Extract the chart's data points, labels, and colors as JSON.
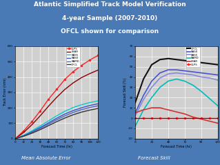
{
  "title_lines": [
    "Atlantic Simplified Track Model Verification",
    "4-year Sample (2007-2010)",
    "OFCL shown for comparison"
  ],
  "background_color": "#4a7ab5",
  "plot_bg": "#d0d0d0",
  "subtitle_left": "Mean Absolute Error",
  "subtitle_right": "Forecast Skill",
  "mae": {
    "xlabel": "Forecast Time (hr)",
    "ylabel": "Track Error (nmi)",
    "xlim": [
      0,
      120
    ],
    "ylim": [
      0,
      600
    ],
    "xticks": [
      0,
      12,
      24,
      36,
      48,
      60,
      72,
      84,
      96,
      108,
      120
    ],
    "yticks": [
      0,
      100,
      200,
      300,
      400,
      500,
      600
    ],
    "series": [
      {
        "label": "CLPS",
        "color": "#ff2020",
        "marker": true,
        "lw": 1.0,
        "values": [
          0,
          50,
          110,
          180,
          255,
          320,
          385,
          435,
          475,
          510,
          540
        ]
      },
      {
        "label": "LBAR",
        "color": "#880000",
        "marker": false,
        "lw": 1.0,
        "values": [
          0,
          40,
          90,
          148,
          210,
          268,
          320,
          362,
          396,
          422,
          445
        ]
      },
      {
        "label": "BAS5",
        "color": "#00cccc",
        "marker": false,
        "lw": 1.0,
        "values": [
          0,
          22,
          50,
          82,
          115,
          148,
          178,
          202,
          220,
          234,
          245
        ]
      },
      {
        "label": "BAS0",
        "color": "#3355cc",
        "marker": false,
        "lw": 1.0,
        "values": [
          0,
          19,
          44,
          72,
          102,
          132,
          160,
          182,
          200,
          215,
          226
        ]
      },
      {
        "label": "BAMD",
        "color": "#5566bb",
        "marker": false,
        "lw": 1.0,
        "values": [
          0,
          17,
          40,
          66,
          94,
          122,
          148,
          170,
          188,
          202,
          213
        ]
      },
      {
        "label": "OFCL",
        "color": "#333333",
        "marker": false,
        "lw": 1.0,
        "values": [
          0,
          15,
          35,
          58,
          84,
          110,
          134,
          155,
          172,
          185,
          196
        ]
      }
    ]
  },
  "skill": {
    "xlabel": "Forecast Time (hr)",
    "ylabel": "Forecast Skill (%)",
    "xlim": [
      0,
      120
    ],
    "ylim": [
      -20,
      70
    ],
    "xticks": [
      0,
      24,
      48,
      72,
      96,
      120
    ],
    "yticks": [
      -20,
      -10,
      0,
      10,
      20,
      30,
      40,
      50,
      60,
      70
    ],
    "series": [
      {
        "label": "OFCL",
        "color": "#111111",
        "marker": false,
        "lw": 1.5,
        "values": [
          15,
          38,
          52,
          57,
          58,
          57,
          56,
          55,
          54,
          53,
          52
        ]
      },
      {
        "label": "BAS0",
        "color": "#4455cc",
        "marker": false,
        "lw": 1.2,
        "values": [
          5,
          22,
          36,
          44,
          47,
          47,
          46,
          45,
          44,
          43,
          42
        ]
      },
      {
        "label": "BAS5",
        "color": "#8888dd",
        "marker": false,
        "lw": 1.2,
        "values": [
          2,
          18,
          30,
          39,
          43,
          44,
          43,
          42,
          40,
          39,
          37
        ]
      },
      {
        "label": "BAMD",
        "color": "#00bbbb",
        "marker": false,
        "lw": 1.2,
        "values": [
          -8,
          8,
          20,
          30,
          36,
          38,
          36,
          32,
          26,
          19,
          12
        ]
      },
      {
        "label": "LBAR",
        "color": "#cc3333",
        "marker": false,
        "lw": 1.2,
        "values": [
          5,
          8,
          10,
          10,
          8,
          6,
          4,
          1,
          -1,
          -3,
          -5
        ]
      },
      {
        "label": "CLPS",
        "color": "#ff2222",
        "marker": true,
        "lw": 1.0,
        "values": [
          0,
          0,
          0,
          0,
          0,
          0,
          0,
          0,
          0,
          0,
          0
        ]
      }
    ]
  }
}
